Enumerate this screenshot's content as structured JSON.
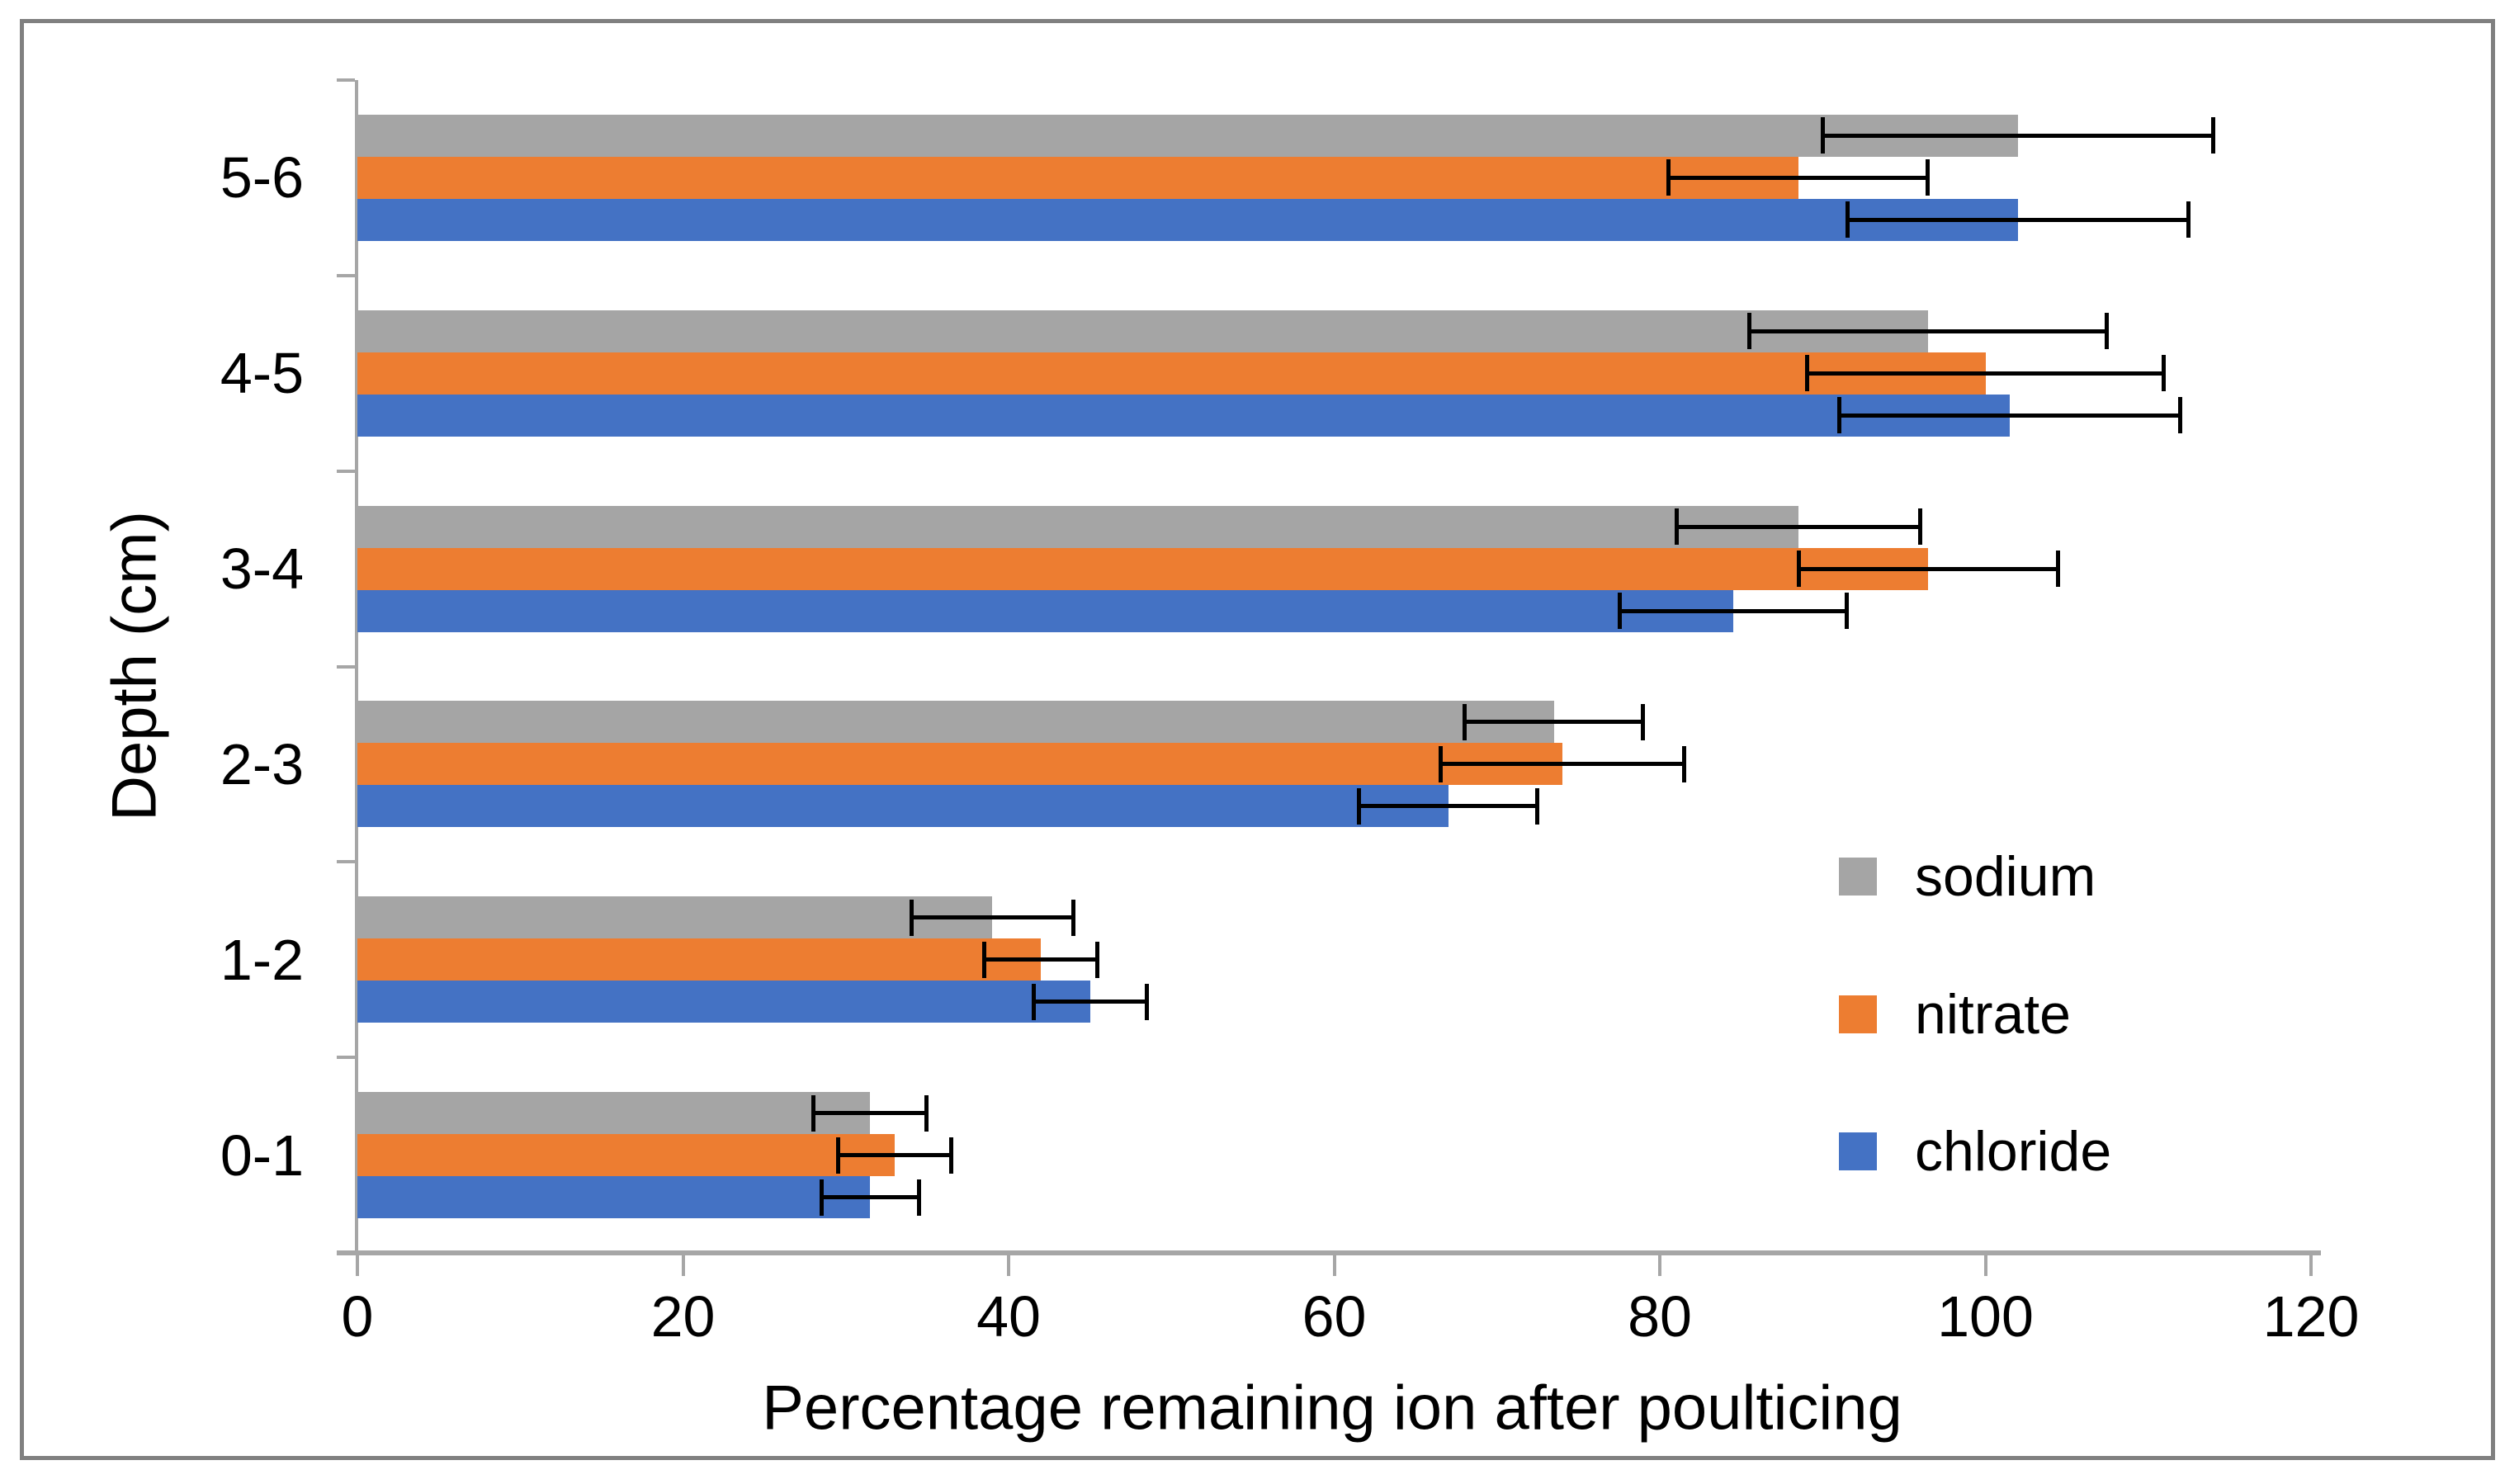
{
  "chart_data": {
    "type": "bar",
    "orientation": "horizontal",
    "xlabel": "Percentage remaining ion after poulticing",
    "ylabel": "Depth (cm)",
    "categories_top_to_bottom": [
      "5-6",
      "4-5",
      "3-4",
      "2-3",
      "1-2",
      "0-1"
    ],
    "x_ticks": [
      0,
      20,
      40,
      60,
      80,
      100,
      120
    ],
    "xlim": [
      0,
      120
    ],
    "grid": false,
    "legend_position": "right-middle",
    "series": [
      {
        "name": "sodium",
        "color": "#A5A5A5",
        "values": [
          102,
          96.5,
          88.5,
          73.5,
          39,
          31.5
        ],
        "error": [
          12,
          11,
          7.5,
          5.5,
          5,
          3.5
        ]
      },
      {
        "name": "nitrate",
        "color": "#ED7D31",
        "values": [
          88.5,
          100,
          96.5,
          74,
          42,
          33
        ],
        "error": [
          8,
          11,
          8,
          7.5,
          3.5,
          3.5
        ]
      },
      {
        "name": "chloride",
        "color": "#4472C4",
        "values": [
          102,
          101.5,
          84.5,
          67,
          45,
          31.5
        ],
        "error": [
          10.5,
          10.5,
          7,
          5.5,
          3.5,
          3
        ]
      }
    ],
    "error_bar_color": "#000000"
  },
  "styles": {
    "axis_line_color": "#A6A6A6",
    "frame_color": "#808080",
    "text_color": "#000000",
    "background": "#FFFFFF"
  }
}
